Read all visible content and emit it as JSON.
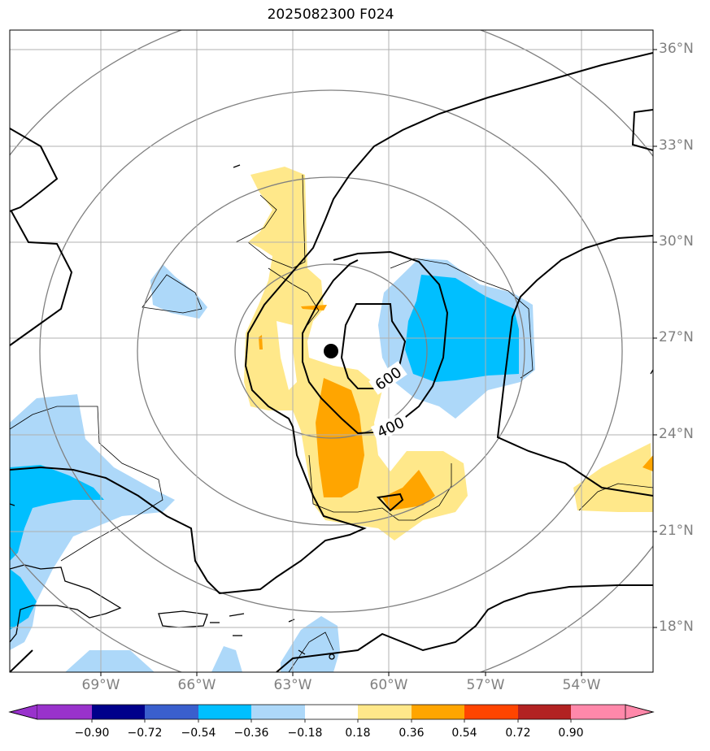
{
  "title": "2025082300 F024",
  "map": {
    "lon_range": [
      -71.5,
      -51.5
    ],
    "lat_range": [
      16.7,
      36.6
    ],
    "lon_ticks": [
      "69°W",
      "66°W",
      "63°W",
      "60°W",
      "57°W",
      "54°W"
    ],
    "lat_ticks": [
      "36°N",
      "33°N",
      "30°N",
      "27°N",
      "24°N",
      "21°N",
      "18°N"
    ],
    "contour_labels": [
      "600",
      "400"
    ],
    "center_marker": {
      "lon": -61.8,
      "lat": 26.6
    }
  },
  "colorbar": {
    "ticks": [
      "−0.90",
      "−0.72",
      "−0.54",
      "−0.36",
      "−0.18",
      "0.18",
      "0.36",
      "0.54",
      "0.72",
      "0.90"
    ],
    "colors": [
      "#9932cc",
      "#00008b",
      "#3a5fcd",
      "#00bfff",
      "#add8f9",
      "#ffffff",
      "#ffe88a",
      "#ffa500",
      "#ff4500",
      "#b22222",
      "#ff88aa"
    ]
  }
}
